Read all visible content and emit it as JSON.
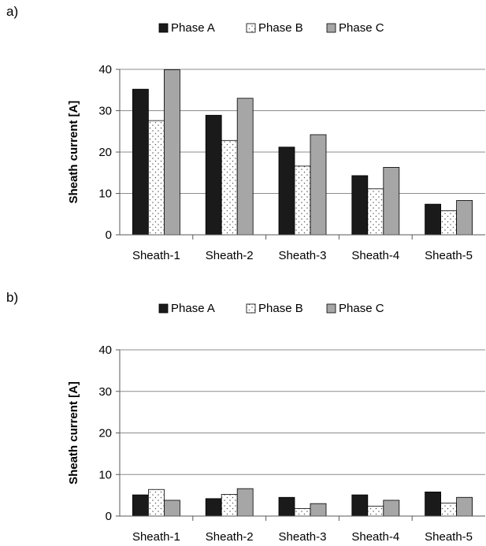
{
  "chart_data": [
    {
      "type": "bar",
      "panel_label": "a)",
      "categories": [
        "Sheath-1",
        "Sheath-2",
        "Sheath-3",
        "Sheath-4",
        "Sheath-5"
      ],
      "series": [
        {
          "name": "Phase A",
          "values": [
            35.2,
            28.9,
            21.2,
            14.3,
            7.4
          ],
          "fill": "#1a1a1a",
          "pattern": "solid"
        },
        {
          "name": "Phase B",
          "values": [
            27.6,
            22.8,
            16.6,
            11.1,
            5.8
          ],
          "fill": "#ffffff",
          "pattern": "dots"
        },
        {
          "name": "Phase C",
          "values": [
            39.9,
            33.0,
            24.2,
            16.3,
            8.3
          ],
          "fill": "#a6a6a6",
          "pattern": "solid"
        }
      ],
      "xlabel": "",
      "ylabel": "Sheath current [A]",
      "ylim": [
        0,
        40
      ],
      "yticks": [
        "0",
        "10",
        "20",
        "30",
        "40"
      ],
      "grid": true,
      "legend_position": "top"
    },
    {
      "type": "bar",
      "panel_label": "b)",
      "categories": [
        "Sheath-1",
        "Sheath-2",
        "Sheath-3",
        "Sheath-4",
        "Sheath-5"
      ],
      "series": [
        {
          "name": "Phase A",
          "values": [
            5.1,
            4.2,
            4.5,
            5.1,
            5.8
          ],
          "fill": "#1a1a1a",
          "pattern": "solid"
        },
        {
          "name": "Phase B",
          "values": [
            6.4,
            5.2,
            1.8,
            2.4,
            3.1
          ],
          "fill": "#ffffff",
          "pattern": "dots"
        },
        {
          "name": "Phase C",
          "values": [
            3.8,
            6.6,
            3.0,
            3.8,
            4.5
          ],
          "fill": "#a6a6a6",
          "pattern": "solid"
        }
      ],
      "xlabel": "",
      "ylabel": "Sheath current [A]",
      "ylim": [
        0,
        40
      ],
      "yticks": [
        "0",
        "10",
        "20",
        "30",
        "40"
      ],
      "grid": true,
      "legend_position": "top"
    }
  ]
}
